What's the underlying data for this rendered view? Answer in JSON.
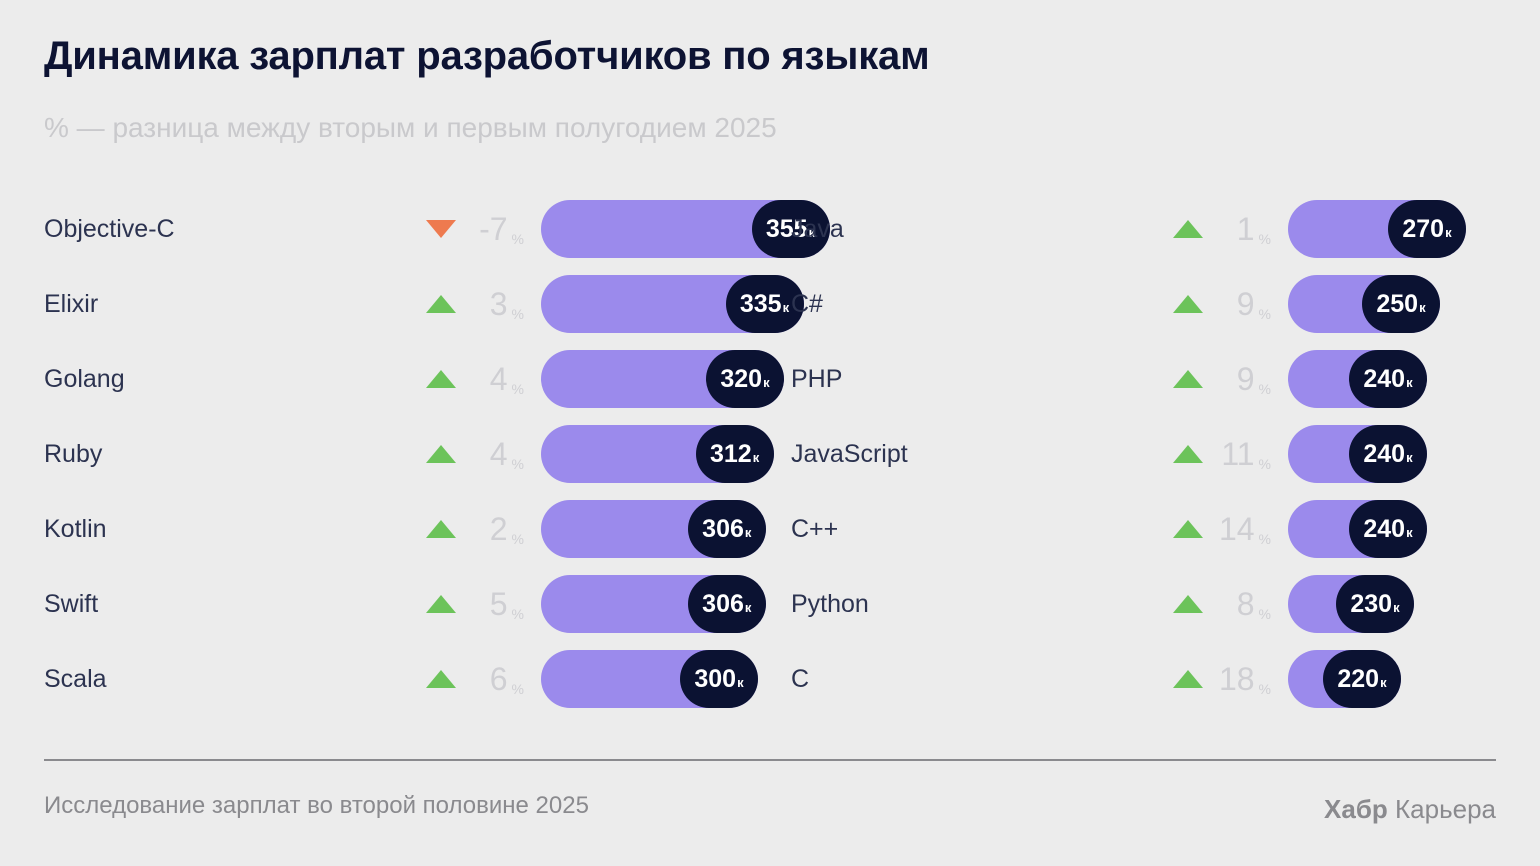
{
  "title": "Динамика зарплат разработчиков по языкам",
  "subtitle": "% — разница между вторым и первым полугодием 2025",
  "footer": {
    "source": "Исследование зарплат во второй половине 2025",
    "brand_bold": "Хабр",
    "brand_rest": " Карьера"
  },
  "colors": {
    "bar": "#9b8aec",
    "pill": "#0b1232",
    "up": "#6cc35a",
    "down": "#ee7a4f"
  },
  "chart_data": {
    "type": "bar",
    "value_unit": "к",
    "change_unit": "%",
    "series": [
      {
        "column": "left",
        "items": [
          {
            "label": "Objective-C",
            "value": 355,
            "change": -7,
            "direction": "down",
            "display_change": "-7"
          },
          {
            "label": "Elixir",
            "value": 335,
            "change": 3,
            "direction": "up",
            "display_change": "3"
          },
          {
            "label": "Golang",
            "value": 320,
            "change": 4,
            "direction": "up",
            "display_change": "4"
          },
          {
            "label": "Ruby",
            "value": 312,
            "change": 4,
            "direction": "up",
            "display_change": "4"
          },
          {
            "label": "Kotlin",
            "value": 306,
            "change": 2,
            "direction": "up",
            "display_change": "2"
          },
          {
            "label": "Swift",
            "value": 306,
            "change": 5,
            "direction": "up",
            "display_change": "5"
          },
          {
            "label": "Scala",
            "value": 300,
            "change": 6,
            "direction": "up",
            "display_change": "6"
          }
        ]
      },
      {
        "column": "right",
        "items": [
          {
            "label": "Java",
            "value": 270,
            "change": 1,
            "direction": "up",
            "display_change": "1"
          },
          {
            "label": "C#",
            "value": 250,
            "change": 9,
            "direction": "up",
            "display_change": "9"
          },
          {
            "label": "PHP",
            "value": 240,
            "change": 9,
            "direction": "up",
            "display_change": "9"
          },
          {
            "label": "JavaScript",
            "value": 240,
            "change": 11,
            "direction": "up",
            "display_change": "11"
          },
          {
            "label": "C++",
            "value": 240,
            "change": 14,
            "direction": "up",
            "display_change": "14"
          },
          {
            "label": "Python",
            "value": 230,
            "change": 8,
            "direction": "up",
            "display_change": "8"
          },
          {
            "label": "C",
            "value": 220,
            "change": 18,
            "direction": "up",
            "display_change": "18"
          }
        ]
      }
    ]
  }
}
